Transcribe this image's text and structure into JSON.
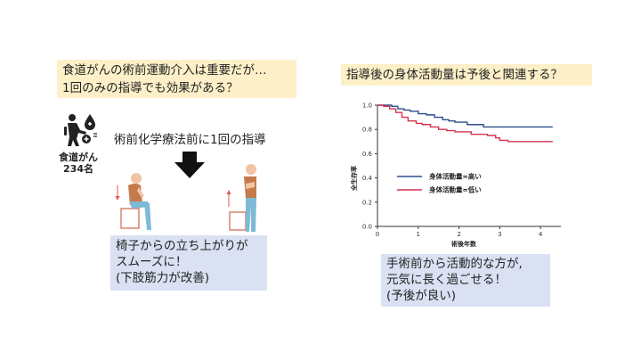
{
  "question_left": {
    "lines": [
      "食道がんの術前運動介入は重要だが…",
      "1回のみの指導でも効果がある？"
    ]
  },
  "question_right": {
    "text": "指導後の身体活動量は予後と関連する？"
  },
  "patients": {
    "line1": "食道がん",
    "line2": "234名",
    "icon": "patient-exercise-icon"
  },
  "intervention": {
    "text": "術前化学療法前に1回の指導",
    "arrow_icon": "down-arrow-icon"
  },
  "illustrations": [
    "sit-to-stand-sitting-figure",
    "sit-to-stand-standing-figure"
  ],
  "result_left": {
    "lines": [
      "椅子からの立ち上がりが",
      "スムーズに！",
      "(下肢筋力が改善)"
    ]
  },
  "result_right": {
    "lines": [
      "手術前から活動的な方が,",
      "元気に長く過ごせる！",
      "(予後が良い)"
    ]
  },
  "chart_data": {
    "type": "line",
    "title": "",
    "xlabel": "術後年数",
    "ylabel": "全生存率",
    "xlim": [
      0,
      4.5
    ],
    "ylim": [
      0,
      1.0
    ],
    "xticks": [
      0,
      1,
      2,
      3,
      4
    ],
    "yticks": [
      0.0,
      0.2,
      0.4,
      0.6,
      0.8,
      1.0
    ],
    "legend_position": "center-left",
    "series": [
      {
        "name": "身体活動量=高い",
        "color": "#2e4e8c",
        "x": [
          0,
          0.2,
          0.35,
          0.5,
          0.65,
          0.8,
          1.0,
          1.2,
          1.4,
          1.6,
          1.75,
          1.9,
          2.05,
          2.2,
          2.4,
          2.6,
          2.75,
          2.9,
          3.1,
          3.3,
          3.5,
          3.7,
          4.3
        ],
        "y": [
          1.0,
          1.0,
          0.99,
          0.97,
          0.96,
          0.95,
          0.93,
          0.92,
          0.9,
          0.88,
          0.87,
          0.86,
          0.86,
          0.84,
          0.84,
          0.82,
          0.82,
          0.82,
          0.82,
          0.82,
          0.82,
          0.82,
          0.82
        ]
      },
      {
        "name": "身体活動量=低い",
        "color": "#d6334f",
        "x": [
          0,
          0.15,
          0.3,
          0.45,
          0.6,
          0.75,
          0.95,
          1.1,
          1.3,
          1.5,
          1.7,
          1.9,
          2.1,
          2.3,
          2.5,
          2.7,
          2.9,
          3.0,
          3.2,
          3.5,
          3.8,
          4.3
        ],
        "y": [
          1.0,
          0.99,
          0.97,
          0.94,
          0.9,
          0.87,
          0.85,
          0.84,
          0.82,
          0.8,
          0.79,
          0.78,
          0.78,
          0.76,
          0.76,
          0.75,
          0.73,
          0.71,
          0.7,
          0.7,
          0.7,
          0.7
        ]
      }
    ]
  }
}
